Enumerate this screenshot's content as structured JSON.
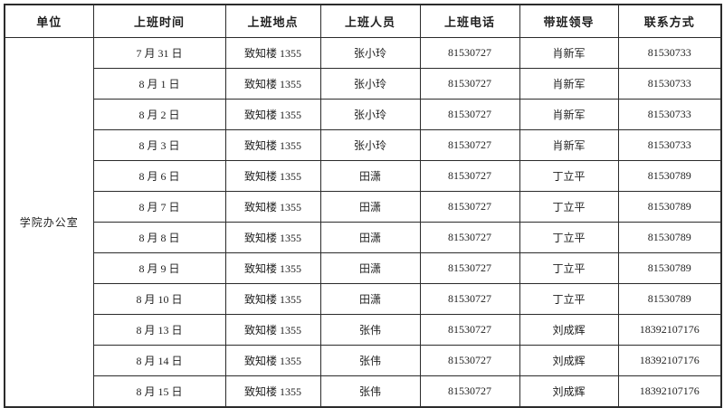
{
  "table": {
    "headers": [
      "单位",
      "上班时间",
      "上班地点",
      "上班人员",
      "上班电话",
      "带班领导",
      "联系方式"
    ],
    "unit": "学院办公室",
    "rows": [
      {
        "date": "7 月 31 日",
        "location": "致知楼 1355",
        "staff": "张小玲",
        "phone": "81530727",
        "leader": "肖新军",
        "contact": "81530733"
      },
      {
        "date": "8 月 1 日",
        "location": "致知楼 1355",
        "staff": "张小玲",
        "phone": "81530727",
        "leader": "肖新军",
        "contact": "81530733"
      },
      {
        "date": "8 月 2 日",
        "location": "致知楼 1355",
        "staff": "张小玲",
        "phone": "81530727",
        "leader": "肖新军",
        "contact": "81530733"
      },
      {
        "date": "8 月 3 日",
        "location": "致知楼 1355",
        "staff": "张小玲",
        "phone": "81530727",
        "leader": "肖新军",
        "contact": "81530733"
      },
      {
        "date": "8 月 6 日",
        "location": "致知楼 1355",
        "staff": "田潇",
        "phone": "81530727",
        "leader": "丁立平",
        "contact": "81530789"
      },
      {
        "date": "8 月 7 日",
        "location": "致知楼 1355",
        "staff": "田潇",
        "phone": "81530727",
        "leader": "丁立平",
        "contact": "81530789"
      },
      {
        "date": "8 月 8 日",
        "location": "致知楼 1355",
        "staff": "田潇",
        "phone": "81530727",
        "leader": "丁立平",
        "contact": "81530789"
      },
      {
        "date": "8 月 9 日",
        "location": "致知楼 1355",
        "staff": "田潇",
        "phone": "81530727",
        "leader": "丁立平",
        "contact": "81530789"
      },
      {
        "date": "8 月 10 日",
        "location": "致知楼 1355",
        "staff": "田潇",
        "phone": "81530727",
        "leader": "丁立平",
        "contact": "81530789"
      },
      {
        "date": "8 月 13 日",
        "location": "致知楼 1355",
        "staff": "张伟",
        "phone": "81530727",
        "leader": "刘成辉",
        "contact": "18392107176"
      },
      {
        "date": "8 月 14 日",
        "location": "致知楼 1355",
        "staff": "张伟",
        "phone": "81530727",
        "leader": "刘成辉",
        "contact": "18392107176"
      },
      {
        "date": "8 月 15 日",
        "location": "致知楼 1355",
        "staff": "张伟",
        "phone": "81530727",
        "leader": "刘成辉",
        "contact": "18392107176"
      }
    ],
    "colors": {
      "border": "#2b2b2b",
      "text": "#1f1f1f",
      "background": "#ffffff"
    }
  }
}
